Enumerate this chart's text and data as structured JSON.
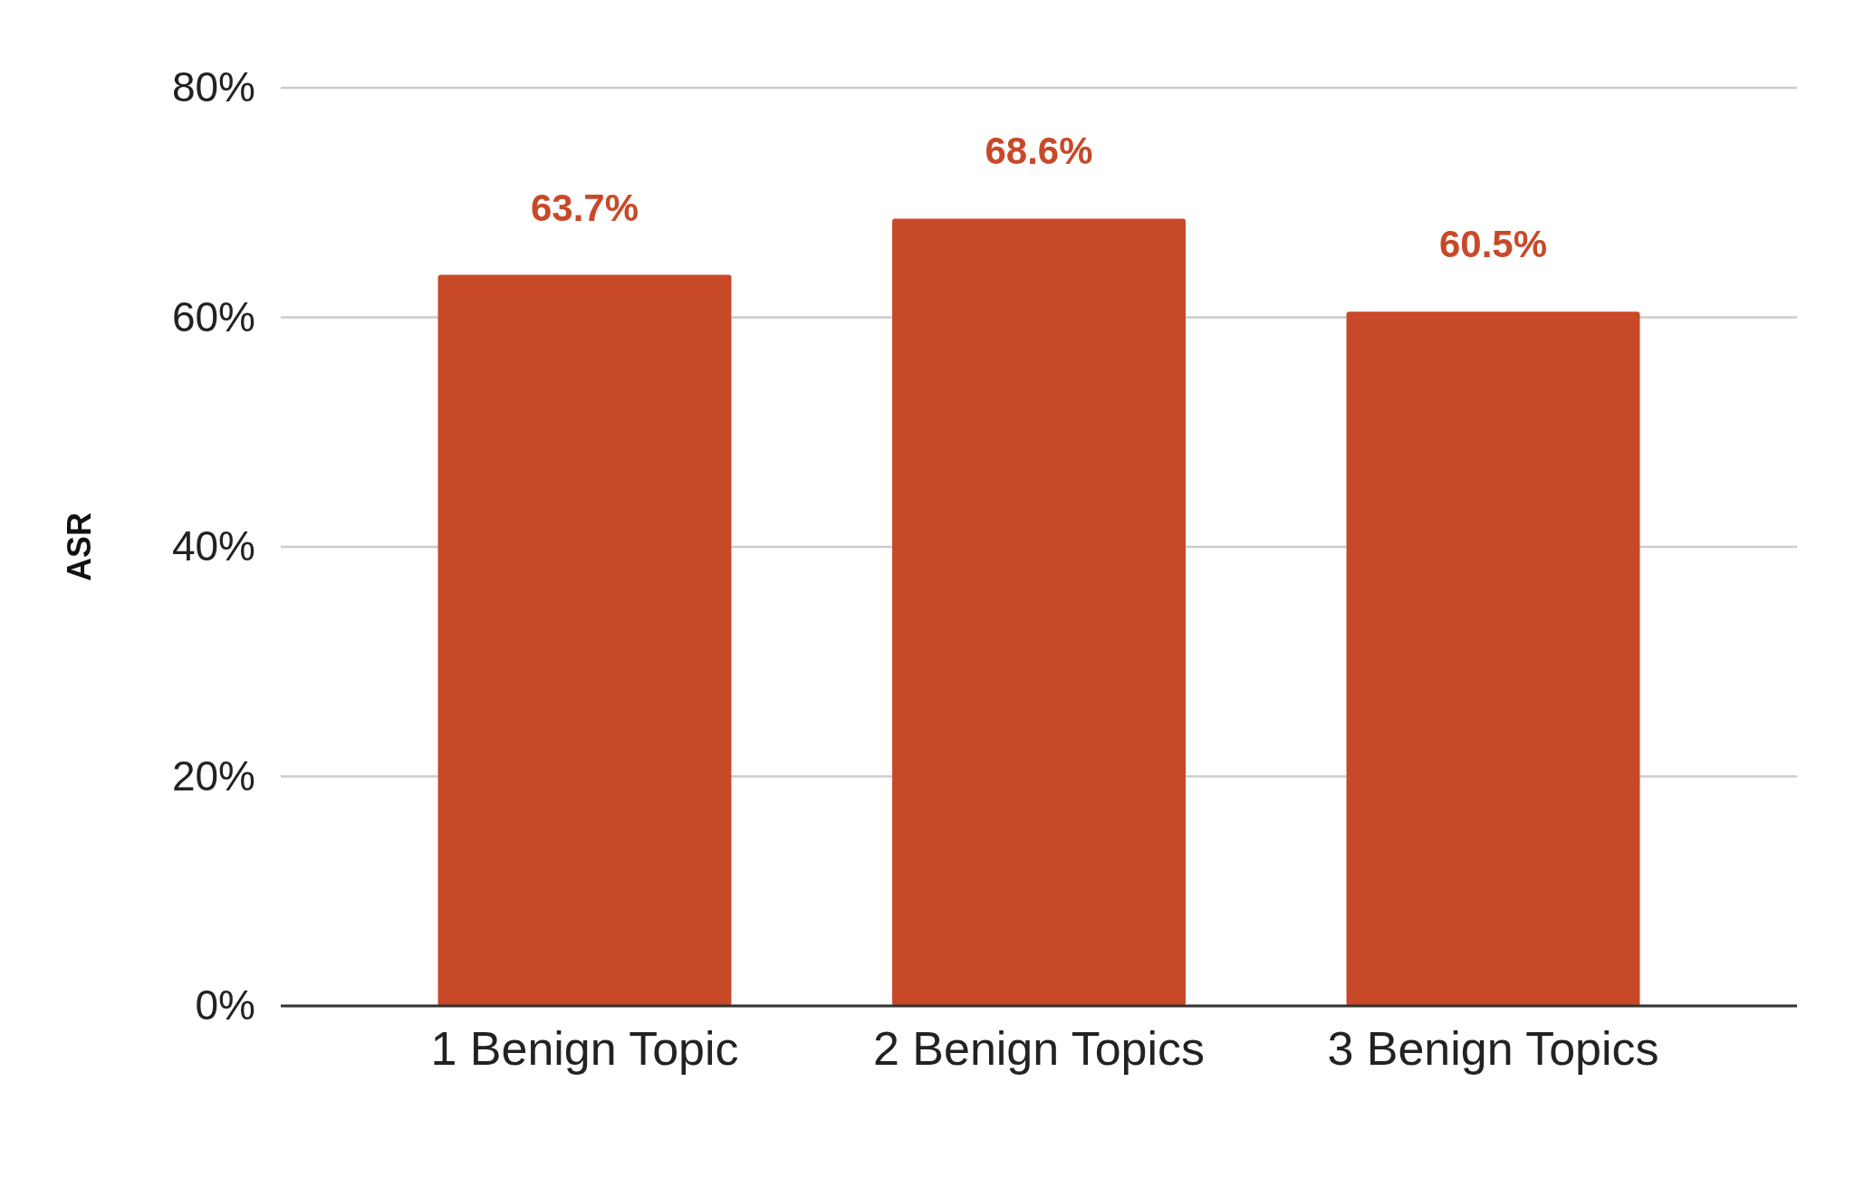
{
  "chart_data": {
    "type": "bar",
    "ylabel": "ASR",
    "categories": [
      "1 Benign Topic",
      "2 Benign Topics",
      "3 Benign Topics"
    ],
    "values": [
      63.7,
      68.6,
      60.5
    ],
    "value_labels": [
      "63.7%",
      "68.6%",
      "60.5%"
    ],
    "color": "#c84928",
    "ylim": [
      0,
      80
    ],
    "yticks": [
      {
        "value": 0,
        "label": "0%"
      },
      {
        "value": 20,
        "label": "20%"
      },
      {
        "value": 40,
        "label": "40%"
      },
      {
        "value": 60,
        "label": "60%"
      },
      {
        "value": 80,
        "label": "80%"
      }
    ],
    "grid": "y"
  }
}
